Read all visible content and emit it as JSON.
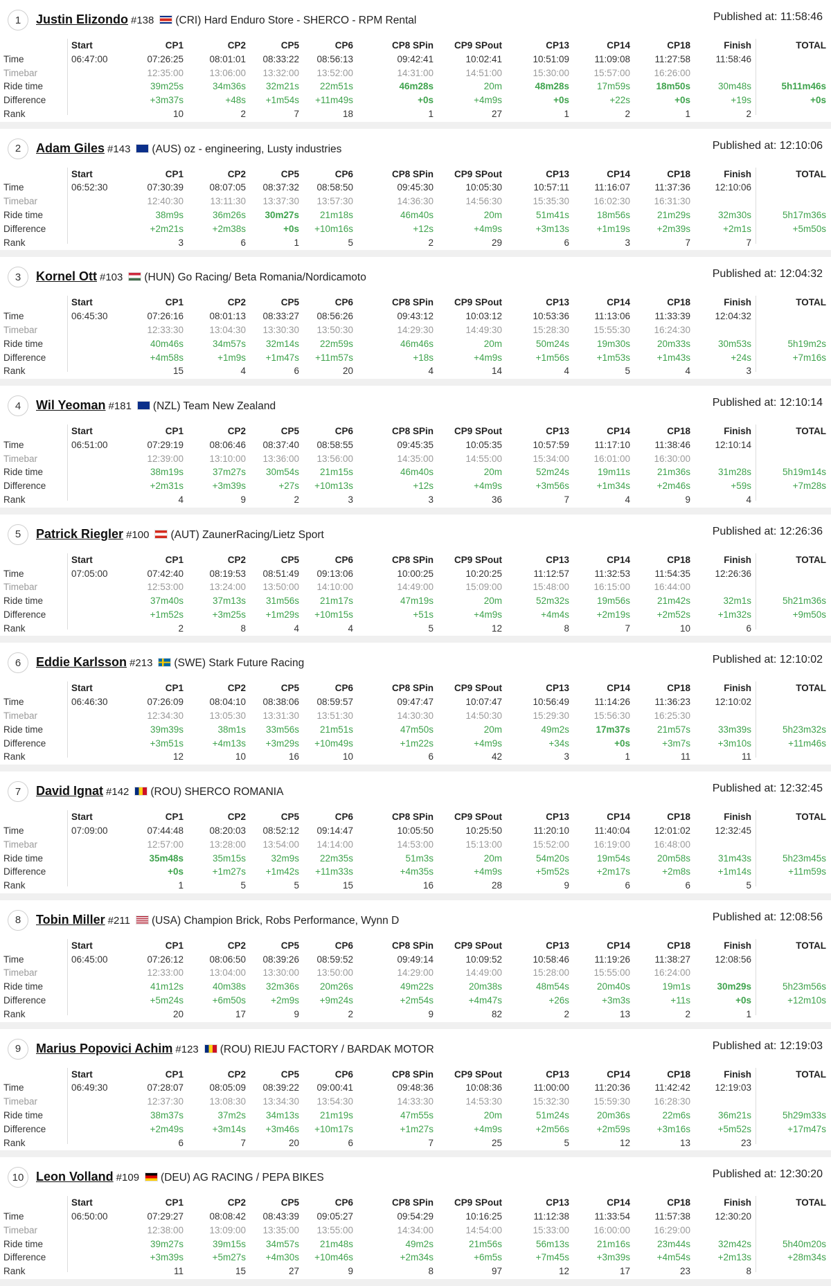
{
  "labels": {
    "start": "Start",
    "total": "TOTAL",
    "published": "Published at:",
    "rows": [
      "Time",
      "Timebar",
      "Ride time",
      "Difference",
      "Rank"
    ]
  },
  "columns": [
    "CP1",
    "CP2",
    "CP5",
    "CP6",
    "CP8 SPin",
    "CP9 SPout",
    "CP13",
    "CP14",
    "CP18",
    "Finish"
  ],
  "colors": {
    "ride": "#3fa34d",
    "timebar": "#9a9a9a"
  },
  "riders": [
    {
      "pos": "1",
      "name": "Justin Elizondo",
      "bib": "#138",
      "flag": "CRI",
      "team": "(CRI) Hard Enduro Store - SHERCO - RPM Rental",
      "published": "11:58:46",
      "start": "06:47:00",
      "time": [
        "07:26:25",
        "08:01:01",
        "08:33:22",
        "08:56:13",
        "09:42:41",
        "10:02:41",
        "10:51:09",
        "11:09:08",
        "11:27:58",
        "11:58:46"
      ],
      "timebar": [
        "12:35:00",
        "13:06:00",
        "13:32:00",
        "13:52:00",
        "14:31:00",
        "14:51:00",
        "15:30:00",
        "15:57:00",
        "16:26:00"
      ],
      "ride": [
        "39m25s",
        "34m36s",
        "32m21s",
        "22m51s",
        "46m28s",
        "20m",
        "48m28s",
        "17m59s",
        "18m50s",
        "30m48s",
        "5h11m46s"
      ],
      "diff": [
        "+3m37s",
        "+48s",
        "+1m54s",
        "+11m49s",
        "+0s",
        "+4m9s",
        "+0s",
        "+22s",
        "+0s",
        "+19s",
        "+0s"
      ],
      "rank": [
        "10",
        "2",
        "7",
        "18",
        "1",
        "27",
        "1",
        "2",
        "1",
        "2"
      ],
      "best": [
        4,
        6,
        8,
        10
      ]
    },
    {
      "pos": "2",
      "name": "Adam Giles",
      "bib": "#143",
      "flag": "AUS",
      "team": "(AUS) oz - engineering, Lusty industries",
      "published": "12:10:06",
      "start": "06:52:30",
      "time": [
        "07:30:39",
        "08:07:05",
        "08:37:32",
        "08:58:50",
        "09:45:30",
        "10:05:30",
        "10:57:11",
        "11:16:07",
        "11:37:36",
        "12:10:06"
      ],
      "timebar": [
        "12:40:30",
        "13:11:30",
        "13:37:30",
        "13:57:30",
        "14:36:30",
        "14:56:30",
        "15:35:30",
        "16:02:30",
        "16:31:30"
      ],
      "ride": [
        "38m9s",
        "36m26s",
        "30m27s",
        "21m18s",
        "46m40s",
        "20m",
        "51m41s",
        "18m56s",
        "21m29s",
        "32m30s",
        "5h17m36s"
      ],
      "diff": [
        "+2m21s",
        "+2m38s",
        "+0s",
        "+10m16s",
        "+12s",
        "+4m9s",
        "+3m13s",
        "+1m19s",
        "+2m39s",
        "+2m1s",
        "+5m50s"
      ],
      "rank": [
        "3",
        "6",
        "1",
        "5",
        "2",
        "29",
        "6",
        "3",
        "7",
        "7"
      ],
      "best": [
        2
      ]
    },
    {
      "pos": "3",
      "name": "Kornel Ott",
      "bib": "#103",
      "flag": "HUN",
      "team": "(HUN) Go Racing/ Beta Romania/Nordicamoto",
      "published": "12:04:32",
      "start": "06:45:30",
      "time": [
        "07:26:16",
        "08:01:13",
        "08:33:27",
        "08:56:26",
        "09:43:12",
        "10:03:12",
        "10:53:36",
        "11:13:06",
        "11:33:39",
        "12:04:32"
      ],
      "timebar": [
        "12:33:30",
        "13:04:30",
        "13:30:30",
        "13:50:30",
        "14:29:30",
        "14:49:30",
        "15:28:30",
        "15:55:30",
        "16:24:30"
      ],
      "ride": [
        "40m46s",
        "34m57s",
        "32m14s",
        "22m59s",
        "46m46s",
        "20m",
        "50m24s",
        "19m30s",
        "20m33s",
        "30m53s",
        "5h19m2s"
      ],
      "diff": [
        "+4m58s",
        "+1m9s",
        "+1m47s",
        "+11m57s",
        "+18s",
        "+4m9s",
        "+1m56s",
        "+1m53s",
        "+1m43s",
        "+24s",
        "+7m16s"
      ],
      "rank": [
        "15",
        "4",
        "6",
        "20",
        "4",
        "14",
        "4",
        "5",
        "4",
        "3"
      ],
      "best": []
    },
    {
      "pos": "4",
      "name": "Wil Yeoman",
      "bib": "#181",
      "flag": "NZL",
      "team": "(NZL) Team New Zealand",
      "published": "12:10:14",
      "start": "06:51:00",
      "time": [
        "07:29:19",
        "08:06:46",
        "08:37:40",
        "08:58:55",
        "09:45:35",
        "10:05:35",
        "10:57:59",
        "11:17:10",
        "11:38:46",
        "12:10:14"
      ],
      "timebar": [
        "12:39:00",
        "13:10:00",
        "13:36:00",
        "13:56:00",
        "14:35:00",
        "14:55:00",
        "15:34:00",
        "16:01:00",
        "16:30:00"
      ],
      "ride": [
        "38m19s",
        "37m27s",
        "30m54s",
        "21m15s",
        "46m40s",
        "20m",
        "52m24s",
        "19m11s",
        "21m36s",
        "31m28s",
        "5h19m14s"
      ],
      "diff": [
        "+2m31s",
        "+3m39s",
        "+27s",
        "+10m13s",
        "+12s",
        "+4m9s",
        "+3m56s",
        "+1m34s",
        "+2m46s",
        "+59s",
        "+7m28s"
      ],
      "rank": [
        "4",
        "9",
        "2",
        "3",
        "3",
        "36",
        "7",
        "4",
        "9",
        "4"
      ],
      "best": []
    },
    {
      "pos": "5",
      "name": "Patrick Riegler",
      "bib": "#100",
      "flag": "AUT",
      "team": "(AUT) ZaunerRacing/Lietz Sport",
      "published": "12:26:36",
      "start": "07:05:00",
      "time": [
        "07:42:40",
        "08:19:53",
        "08:51:49",
        "09:13:06",
        "10:00:25",
        "10:20:25",
        "11:12:57",
        "11:32:53",
        "11:54:35",
        "12:26:36"
      ],
      "timebar": [
        "12:53:00",
        "13:24:00",
        "13:50:00",
        "14:10:00",
        "14:49:00",
        "15:09:00",
        "15:48:00",
        "16:15:00",
        "16:44:00"
      ],
      "ride": [
        "37m40s",
        "37m13s",
        "31m56s",
        "21m17s",
        "47m19s",
        "20m",
        "52m32s",
        "19m56s",
        "21m42s",
        "32m1s",
        "5h21m36s"
      ],
      "diff": [
        "+1m52s",
        "+3m25s",
        "+1m29s",
        "+10m15s",
        "+51s",
        "+4m9s",
        "+4m4s",
        "+2m19s",
        "+2m52s",
        "+1m32s",
        "+9m50s"
      ],
      "rank": [
        "2",
        "8",
        "4",
        "4",
        "5",
        "12",
        "8",
        "7",
        "10",
        "6"
      ],
      "best": []
    },
    {
      "pos": "6",
      "name": "Eddie Karlsson",
      "bib": "#213",
      "flag": "SWE",
      "team": "(SWE) Stark Future Racing",
      "published": "12:10:02",
      "start": "06:46:30",
      "time": [
        "07:26:09",
        "08:04:10",
        "08:38:06",
        "08:59:57",
        "09:47:47",
        "10:07:47",
        "10:56:49",
        "11:14:26",
        "11:36:23",
        "12:10:02"
      ],
      "timebar": [
        "12:34:30",
        "13:05:30",
        "13:31:30",
        "13:51:30",
        "14:30:30",
        "14:50:30",
        "15:29:30",
        "15:56:30",
        "16:25:30"
      ],
      "ride": [
        "39m39s",
        "38m1s",
        "33m56s",
        "21m51s",
        "47m50s",
        "20m",
        "49m2s",
        "17m37s",
        "21m57s",
        "33m39s",
        "5h23m32s"
      ],
      "diff": [
        "+3m51s",
        "+4m13s",
        "+3m29s",
        "+10m49s",
        "+1m22s",
        "+4m9s",
        "+34s",
        "+0s",
        "+3m7s",
        "+3m10s",
        "+11m46s"
      ],
      "rank": [
        "12",
        "10",
        "16",
        "10",
        "6",
        "42",
        "3",
        "1",
        "11",
        "11"
      ],
      "best": [
        7
      ]
    },
    {
      "pos": "7",
      "name": "David Ignat",
      "bib": "#142",
      "flag": "ROU",
      "team": "(ROU) SHERCO ROMANIA",
      "published": "12:32:45",
      "start": "07:09:00",
      "time": [
        "07:44:48",
        "08:20:03",
        "08:52:12",
        "09:14:47",
        "10:05:50",
        "10:25:50",
        "11:20:10",
        "11:40:04",
        "12:01:02",
        "12:32:45"
      ],
      "timebar": [
        "12:57:00",
        "13:28:00",
        "13:54:00",
        "14:14:00",
        "14:53:00",
        "15:13:00",
        "15:52:00",
        "16:19:00",
        "16:48:00"
      ],
      "ride": [
        "35m48s",
        "35m15s",
        "32m9s",
        "22m35s",
        "51m3s",
        "20m",
        "54m20s",
        "19m54s",
        "20m58s",
        "31m43s",
        "5h23m45s"
      ],
      "diff": [
        "+0s",
        "+1m27s",
        "+1m42s",
        "+11m33s",
        "+4m35s",
        "+4m9s",
        "+5m52s",
        "+2m17s",
        "+2m8s",
        "+1m14s",
        "+11m59s"
      ],
      "rank": [
        "1",
        "5",
        "5",
        "15",
        "16",
        "28",
        "9",
        "6",
        "6",
        "5"
      ],
      "best": [
        0
      ]
    },
    {
      "pos": "8",
      "name": "Tobin Miller",
      "bib": "#211",
      "flag": "USA",
      "team": "(USA) Champion Brick, Robs Performance, Wynn D",
      "published": "12:08:56",
      "start": "06:45:00",
      "time": [
        "07:26:12",
        "08:06:50",
        "08:39:26",
        "08:59:52",
        "09:49:14",
        "10:09:52",
        "10:58:46",
        "11:19:26",
        "11:38:27",
        "12:08:56"
      ],
      "timebar": [
        "12:33:00",
        "13:04:00",
        "13:30:00",
        "13:50:00",
        "14:29:00",
        "14:49:00",
        "15:28:00",
        "15:55:00",
        "16:24:00"
      ],
      "ride": [
        "41m12s",
        "40m38s",
        "32m36s",
        "20m26s",
        "49m22s",
        "20m38s",
        "48m54s",
        "20m40s",
        "19m1s",
        "30m29s",
        "5h23m56s"
      ],
      "diff": [
        "+5m24s",
        "+6m50s",
        "+2m9s",
        "+9m24s",
        "+2m54s",
        "+4m47s",
        "+26s",
        "+3m3s",
        "+11s",
        "+0s",
        "+12m10s"
      ],
      "rank": [
        "20",
        "17",
        "9",
        "2",
        "9",
        "82",
        "2",
        "13",
        "2",
        "1"
      ],
      "best": [
        9
      ]
    },
    {
      "pos": "9",
      "name": "Marius Popovici Achim",
      "bib": "#123",
      "flag": "ROU",
      "team": "(ROU) RIEJU FACTORY / BARDAK MOTOR",
      "published": "12:19:03",
      "start": "06:49:30",
      "time": [
        "07:28:07",
        "08:05:09",
        "08:39:22",
        "09:00:41",
        "09:48:36",
        "10:08:36",
        "11:00:00",
        "11:20:36",
        "11:42:42",
        "12:19:03"
      ],
      "timebar": [
        "12:37:30",
        "13:08:30",
        "13:34:30",
        "13:54:30",
        "14:33:30",
        "14:53:30",
        "15:32:30",
        "15:59:30",
        "16:28:30"
      ],
      "ride": [
        "38m37s",
        "37m2s",
        "34m13s",
        "21m19s",
        "47m55s",
        "20m",
        "51m24s",
        "20m36s",
        "22m6s",
        "36m21s",
        "5h29m33s"
      ],
      "diff": [
        "+2m49s",
        "+3m14s",
        "+3m46s",
        "+10m17s",
        "+1m27s",
        "+4m9s",
        "+2m56s",
        "+2m59s",
        "+3m16s",
        "+5m52s",
        "+17m47s"
      ],
      "rank": [
        "6",
        "7",
        "20",
        "6",
        "7",
        "25",
        "5",
        "12",
        "13",
        "23"
      ],
      "best": []
    },
    {
      "pos": "10",
      "name": "Leon Volland",
      "bib": "#109",
      "flag": "DEU",
      "team": "(DEU) AG RACING / PEPA BIKES",
      "published": "12:30:20",
      "start": "06:50:00",
      "time": [
        "07:29:27",
        "08:08:42",
        "08:43:39",
        "09:05:27",
        "09:54:29",
        "10:16:25",
        "11:12:38",
        "11:33:54",
        "11:57:38",
        "12:30:20"
      ],
      "timebar": [
        "12:38:00",
        "13:09:00",
        "13:35:00",
        "13:55:00",
        "14:34:00",
        "14:54:00",
        "15:33:00",
        "16:00:00",
        "16:29:00"
      ],
      "ride": [
        "39m27s",
        "39m15s",
        "34m57s",
        "21m48s",
        "49m2s",
        "21m56s",
        "56m13s",
        "21m16s",
        "23m44s",
        "32m42s",
        "5h40m20s"
      ],
      "diff": [
        "+3m39s",
        "+5m27s",
        "+4m30s",
        "+10m46s",
        "+2m34s",
        "+6m5s",
        "+7m45s",
        "+3m39s",
        "+4m54s",
        "+2m13s",
        "+28m34s"
      ],
      "rank": [
        "11",
        "15",
        "27",
        "9",
        "8",
        "97",
        "12",
        "17",
        "23",
        "8"
      ],
      "best": []
    }
  ]
}
